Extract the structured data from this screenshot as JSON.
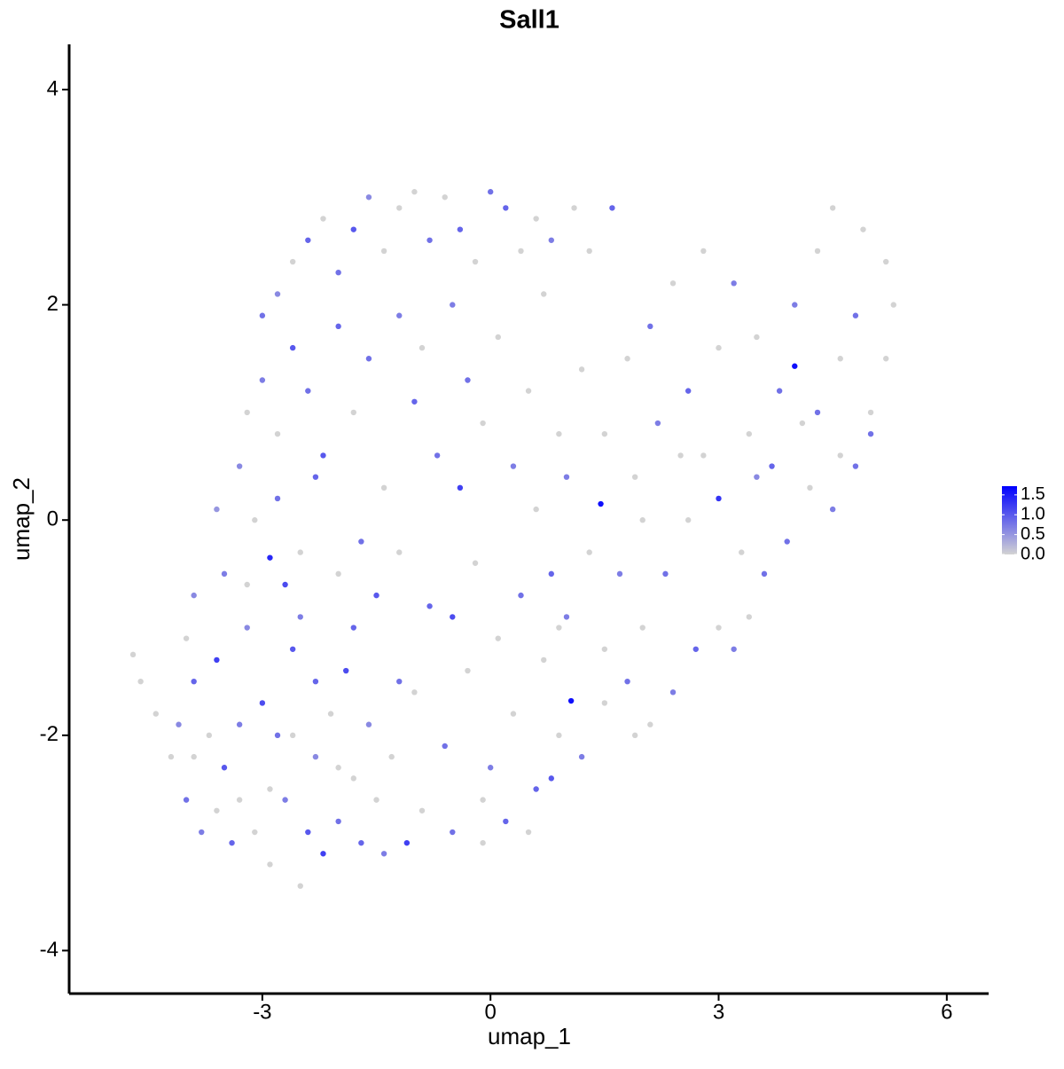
{
  "chart_data": {
    "type": "scatter",
    "title": "Sall1",
    "x_label": "umap_1",
    "y_label": "umap_2",
    "xlim": [
      -5.54,
      6.55
    ],
    "ylim": [
      -4.4,
      4.42
    ],
    "xticks": [
      -3,
      0,
      3,
      6
    ],
    "yticks": [
      -4,
      -2,
      0,
      2,
      4
    ],
    "colors": [
      "#d3d3d3",
      "#0000ff"
    ],
    "colorlim": [
      0,
      1.72
    ],
    "colorticks": [
      {
        "value": 0,
        "label": "0.0"
      },
      {
        "value": 0.5,
        "label": "0.5"
      },
      {
        "value": 1,
        "label": "1.0"
      },
      1.5
    ],
    "x": [
      -4.7,
      -4.6,
      -4.4,
      -4.2,
      -4.1,
      -4.0,
      -3.9,
      -3.8,
      -3.7,
      -3.6,
      -3.5,
      -3.4,
      -3.3,
      -3.2,
      -3.1,
      -3.0,
      -2.9,
      -2.8,
      -2.7,
      -2.6,
      -2.5,
      -2.4,
      -2.3,
      -2.2,
      -2.1,
      -2.0,
      -1.9,
      -1.8,
      -1.7,
      -1.6,
      -1.5,
      -1.4,
      -1.3,
      -1.2,
      -3.9,
      -3.6,
      -3.3,
      -2.9,
      -2.6,
      -2.3,
      -2.0,
      -1.8,
      -3.5,
      -3.9,
      -4.0,
      -3.2,
      -2.9,
      -2.7,
      -2.5,
      -3.1,
      -3.6,
      -3.3,
      -2.8,
      -2.5,
      -2.3,
      -2.0,
      -1.7,
      -1.5,
      -1.2,
      -3.2,
      -3.0,
      -2.8,
      -2.6,
      -2.4,
      -2.2,
      -2.0,
      -1.8,
      -1.6,
      -1.4,
      -1.2,
      -3.0,
      -2.8,
      -2.6,
      -2.4,
      -2.2,
      -2.0,
      -1.8,
      -1.6,
      -1.4,
      -1.2,
      -1.0,
      -0.8,
      -0.6,
      -0.4,
      -0.2,
      0.0,
      0.2,
      0.4,
      0.6,
      0.8,
      1.1,
      1.6,
      1.3,
      0.7,
      -0.5,
      -0.9,
      -0.3,
      0.1,
      0.5,
      -1.0,
      -0.7,
      -0.4,
      -0.1,
      0.3,
      0.6,
      0.9,
      1.2,
      1.0,
      1.45,
      0.8,
      -0.8,
      -0.5,
      -0.2,
      0.1,
      0.4,
      0.7,
      1.0,
      1.3,
      1.06,
      1.5,
      -1.0,
      -0.6,
      -0.3,
      0.0,
      0.3,
      0.6,
      0.9,
      -0.9,
      -0.5,
      -0.1,
      0.2,
      0.5,
      0.8,
      -1.1,
      -0.1,
      1.2,
      1.5,
      1.8,
      2.1,
      2.4,
      2.7,
      3.0,
      2.0,
      2.3,
      2.6,
      1.9,
      2.2,
      2.5,
      3.0,
      3.3,
      3.6,
      3.4,
      3.2,
      3.9,
      4.2,
      4.5,
      4.8,
      5.0,
      5.2,
      5.3,
      5.2,
      4.9,
      4.5,
      4.3,
      4.0,
      4.0,
      3.8,
      3.5,
      3.2,
      2.8,
      2.4,
      2.1,
      1.8,
      2.6,
      3.0,
      3.4,
      3.7,
      4.3,
      4.6,
      4.8,
      2.0,
      1.7,
      2.8,
      3.5,
      4.1,
      4.6,
      5.0,
      1.5,
      1.9,
      0.9
    ],
    "y": [
      -1.25,
      -1.5,
      -1.8,
      -2.2,
      -1.9,
      -2.6,
      -1.5,
      -2.9,
      -2.0,
      -1.3,
      -2.3,
      -3.0,
      -2.6,
      -1.0,
      -2.9,
      -1.7,
      -3.2,
      -2.0,
      -2.6,
      -1.2,
      -3.4,
      -2.9,
      -2.2,
      -3.1,
      -1.8,
      -2.8,
      -1.4,
      -2.4,
      -3.0,
      -1.9,
      -2.6,
      -3.1,
      -2.2,
      -1.5,
      -2.2,
      -2.7,
      -1.9,
      -2.5,
      -2.0,
      -1.5,
      -2.3,
      -1.0,
      -0.5,
      -0.7,
      -1.1,
      -0.6,
      -0.35,
      -0.6,
      -0.9,
      0.0,
      0.1,
      0.5,
      0.2,
      -0.3,
      0.4,
      -0.5,
      -0.2,
      -0.7,
      -0.3,
      1.0,
      1.3,
      0.8,
      1.6,
      1.2,
      0.6,
      1.8,
      1.0,
      1.5,
      0.3,
      1.9,
      1.9,
      2.1,
      2.4,
      2.6,
      2.8,
      2.3,
      2.7,
      3.0,
      2.5,
      2.9,
      3.05,
      2.6,
      3.0,
      2.7,
      2.4,
      3.05,
      2.9,
      2.5,
      2.8,
      2.6,
      2.9,
      2.9,
      2.5,
      2.1,
      2.0,
      1.6,
      1.3,
      1.7,
      1.2,
      1.1,
      0.6,
      0.3,
      0.9,
      0.5,
      0.1,
      0.8,
      1.4,
      0.4,
      0.15,
      -0.5,
      -0.8,
      -0.9,
      -0.4,
      -1.1,
      -0.7,
      -1.3,
      -0.9,
      -0.3,
      -1.68,
      -1.2,
      -1.6,
      -2.1,
      -1.4,
      -2.3,
      -1.8,
      -2.5,
      -2.0,
      -2.7,
      -2.9,
      -2.6,
      -2.8,
      -2.9,
      -2.4,
      -3.0,
      -3.0,
      -2.2,
      -1.7,
      -1.5,
      -1.9,
      -1.6,
      -1.2,
      -1.0,
      -1.0,
      -0.5,
      0.0,
      0.4,
      0.9,
      0.6,
      0.2,
      -0.3,
      -0.5,
      -0.9,
      -1.2,
      -0.2,
      0.3,
      0.1,
      0.5,
      1.0,
      1.5,
      2.0,
      2.4,
      2.7,
      2.9,
      2.5,
      2.0,
      1.43,
      1.2,
      1.7,
      2.2,
      2.5,
      2.2,
      1.8,
      1.5,
      1.2,
      1.6,
      0.8,
      0.5,
      1.0,
      1.5,
      1.9,
      0.0,
      -0.5,
      0.6,
      0.4,
      0.9,
      0.6,
      0.8,
      0.8,
      -2.0,
      -1.0
    ],
    "values": [
      0,
      0,
      0,
      0,
      0.6,
      0.8,
      0.9,
      0.7,
      0,
      1.2,
      1.0,
      0.9,
      0,
      0.6,
      0,
      1.1,
      0,
      0.8,
      0.7,
      1.0,
      0,
      1.0,
      0.6,
      1.2,
      0,
      0.8,
      1.1,
      0,
      0.9,
      0.6,
      0,
      0.7,
      0,
      0.8,
      0,
      0,
      0.7,
      0,
      0,
      0.9,
      0,
      0.9,
      0.7,
      0.6,
      0,
      0,
      1.4,
      1.1,
      0.7,
      0,
      0.5,
      0.6,
      0.8,
      0,
      0.9,
      0,
      0.8,
      1.0,
      0,
      0,
      0.7,
      0,
      1.0,
      0.8,
      1.0,
      0.9,
      0,
      0.8,
      0,
      0.7,
      0.8,
      0.6,
      0,
      0.9,
      0,
      0.8,
      1.0,
      0.6,
      0,
      0,
      0,
      0.8,
      0,
      0.9,
      0,
      0.8,
      0.9,
      0,
      0,
      0.7,
      0,
      0.9,
      0,
      0,
      0.7,
      0,
      0.8,
      0,
      0,
      0.9,
      0.8,
      1.2,
      0,
      0.7,
      0,
      0,
      0,
      0.7,
      1.6,
      0.9,
      0.9,
      1.1,
      0,
      0,
      0.8,
      0,
      0.7,
      0,
      1.6,
      0,
      0,
      0.8,
      0,
      0.7,
      0,
      0.9,
      0,
      0,
      0.8,
      0,
      0.9,
      0,
      1.0,
      1.2,
      0,
      0.7,
      0,
      0.8,
      0,
      0.7,
      0.9,
      0,
      0,
      0.8,
      0,
      0,
      0.7,
      0,
      1.3,
      0,
      0.8,
      0,
      0.7,
      0.8,
      0,
      0.7,
      0.8,
      0,
      0,
      0,
      0,
      0,
      0,
      0,
      0.7,
      1.6,
      0.8,
      0,
      0.7,
      0,
      0,
      0.8,
      0,
      0.9,
      0,
      0,
      0.9,
      0.8,
      0,
      0.8,
      0,
      0.7,
      0,
      0.6,
      0,
      0,
      0.8,
      0,
      0,
      0
    ]
  }
}
